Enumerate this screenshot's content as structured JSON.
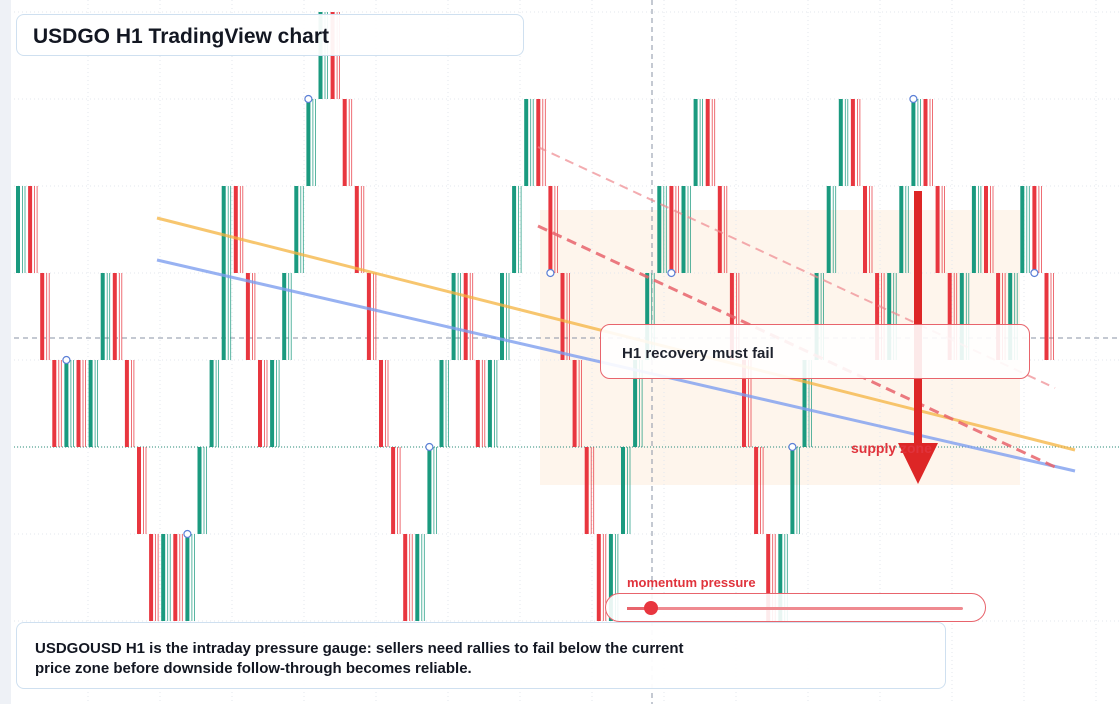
{
  "title": "USDGO H1 TradingView chart",
  "callout": {
    "text": "H1 recovery must fail"
  },
  "supply_label": "supply zone",
  "gauge": {
    "label": "momentum pressure",
    "level": 0.07
  },
  "note": "USDGOUSD H1 is the intraday pressure gauge: sellers need rallies to fail below the current price zone before downside follow-through becomes reliable.",
  "colors": {
    "bull": "#1a9a7f",
    "bear": "#e8363f",
    "trend_orange": "#f5b440",
    "trend_blue": "#7f9ff0",
    "resistance": "#e8646c",
    "zone": "#fdf1e4",
    "arrow": "#dd2626"
  },
  "icons": {
    "down_arrow": "down-arrow-icon",
    "pivot_marker": "circle-marker-icon"
  },
  "chart_data": {
    "type": "candlestick",
    "timeframe": "H1",
    "symbol": "USDGOUSD",
    "levels": 8,
    "candles": [
      {
        "d": 1,
        "o": 4,
        "c": 5
      },
      {
        "d": 1,
        "o": 5,
        "c": 4
      },
      {
        "d": 1,
        "o": 4,
        "c": 3
      },
      {
        "d": 1,
        "o": 3,
        "c": 2
      },
      {
        "d": 1,
        "o": 2,
        "c": 3
      },
      {
        "d": 1,
        "o": 3,
        "c": 2
      },
      {
        "d": 1,
        "o": 2,
        "c": 3
      },
      {
        "d": 1,
        "o": 3,
        "c": 4
      },
      {
        "d": 1,
        "o": 4,
        "c": 3
      },
      {
        "d": 1,
        "o": 3,
        "c": 2
      },
      {
        "d": 1,
        "o": 2,
        "c": 1
      },
      {
        "d": 1,
        "o": 1,
        "c": 0
      },
      {
        "d": 1,
        "o": 0,
        "c": 1
      },
      {
        "d": 1,
        "o": 1,
        "c": 0
      },
      {
        "d": 1,
        "o": 0,
        "c": 1
      },
      {
        "d": 1,
        "o": 1,
        "c": 2
      },
      {
        "d": 1,
        "o": 2,
        "c": 3
      },
      {
        "d": 1,
        "o": 3,
        "c": 5
      },
      {
        "d": 1,
        "o": 5,
        "c": 4
      },
      {
        "d": 1,
        "o": 4,
        "c": 3
      },
      {
        "d": 1,
        "o": 3,
        "c": 2
      },
      {
        "d": 1,
        "o": 2,
        "c": 3
      },
      {
        "d": 1,
        "o": 3,
        "c": 4
      },
      {
        "d": 1,
        "o": 4,
        "c": 5
      },
      {
        "d": 1,
        "o": 5,
        "c": 6
      },
      {
        "d": 1,
        "o": 6,
        "c": 7
      },
      {
        "d": 1,
        "o": 7,
        "c": 6
      },
      {
        "d": 1,
        "o": 6,
        "c": 5
      },
      {
        "d": 1,
        "o": 5,
        "c": 4
      },
      {
        "d": 1,
        "o": 4,
        "c": 3
      },
      {
        "d": 1,
        "o": 3,
        "c": 2
      },
      {
        "d": 1,
        "o": 2,
        "c": 1
      },
      {
        "d": 1,
        "o": 1,
        "c": 0
      },
      {
        "d": 1,
        "o": 0,
        "c": 1
      },
      {
        "d": 1,
        "o": 1,
        "c": 2
      },
      {
        "d": 1,
        "o": 2,
        "c": 3
      },
      {
        "d": 1,
        "o": 3,
        "c": 4
      },
      {
        "d": 1,
        "o": 4,
        "c": 3
      },
      {
        "d": 1,
        "o": 3,
        "c": 2
      },
      {
        "d": 1,
        "o": 2,
        "c": 3
      },
      {
        "d": 1,
        "o": 3,
        "c": 4
      },
      {
        "d": 1,
        "o": 4,
        "c": 5
      },
      {
        "d": 1,
        "o": 5,
        "c": 6
      },
      {
        "d": 1,
        "o": 6,
        "c": 5
      },
      {
        "d": 1,
        "o": 5,
        "c": 4
      },
      {
        "d": 1,
        "o": 4,
        "c": 3
      },
      {
        "d": 1,
        "o": 3,
        "c": 2
      },
      {
        "d": 1,
        "o": 2,
        "c": 1
      },
      {
        "d": 1,
        "o": 1,
        "c": 0
      },
      {
        "d": 1,
        "o": 0,
        "c": 1
      },
      {
        "d": 1,
        "o": 1,
        "c": 2
      },
      {
        "d": 1,
        "o": 2,
        "c": 3
      },
      {
        "d": 1,
        "o": 3,
        "c": 4
      },
      {
        "d": 1,
        "o": 4,
        "c": 5
      },
      {
        "d": 1,
        "o": 5,
        "c": 4
      },
      {
        "d": 1,
        "o": 4,
        "c": 5
      },
      {
        "d": 1,
        "o": 5,
        "c": 6
      },
      {
        "d": 1,
        "o": 6,
        "c": 5
      },
      {
        "d": 1,
        "o": 5,
        "c": 4
      },
      {
        "d": 1,
        "o": 4,
        "c": 3
      },
      {
        "d": 1,
        "o": 3,
        "c": 2
      },
      {
        "d": 1,
        "o": 2,
        "c": 1
      },
      {
        "d": 1,
        "o": 1,
        "c": 0
      },
      {
        "d": 1,
        "o": 0,
        "c": 1
      },
      {
        "d": 1,
        "o": 1,
        "c": 2
      },
      {
        "d": 1,
        "o": 2,
        "c": 3
      },
      {
        "d": 1,
        "o": 3,
        "c": 4
      },
      {
        "d": 1,
        "o": 4,
        "c": 5
      },
      {
        "d": 1,
        "o": 5,
        "c": 6
      },
      {
        "d": 1,
        "o": 6,
        "c": 5
      },
      {
        "d": 1,
        "o": 5,
        "c": 4
      },
      {
        "d": 1,
        "o": 4,
        "c": 3
      },
      {
        "d": 1,
        "o": 3,
        "c": 4
      },
      {
        "d": 1,
        "o": 4,
        "c": 5
      },
      {
        "d": 1,
        "o": 5,
        "c": 6
      },
      {
        "d": 1,
        "o": 6,
        "c": 5
      },
      {
        "d": 1,
        "o": 5,
        "c": 4
      },
      {
        "d": 1,
        "o": 4,
        "c": 3
      },
      {
        "d": 1,
        "o": 3,
        "c": 4
      },
      {
        "d": 1,
        "o": 4,
        "c": 5
      },
      {
        "d": 1,
        "o": 5,
        "c": 4
      },
      {
        "d": 1,
        "o": 4,
        "c": 3
      },
      {
        "d": 1,
        "o": 3,
        "c": 4
      },
      {
        "d": 1,
        "o": 4,
        "c": 5
      },
      {
        "d": 1,
        "o": 5,
        "c": 4
      },
      {
        "d": 1,
        "o": 4,
        "c": 3
      }
    ]
  }
}
